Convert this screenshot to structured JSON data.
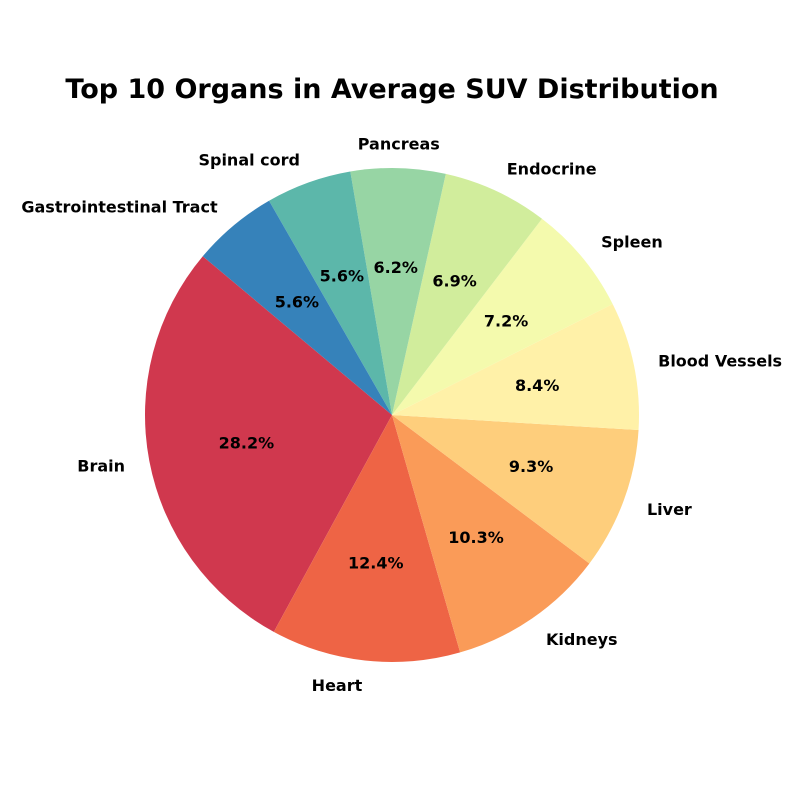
{
  "chart_data": {
    "type": "pie",
    "title": "Top 10 Organs in Average SUV Distribution",
    "start_angle_deg": 140,
    "direction": "counterclockwise",
    "slices": [
      {
        "label": "Brain",
        "value": 28.2,
        "pct_label": "28.2%",
        "color": "#d0384e"
      },
      {
        "label": "Heart",
        "value": 12.4,
        "pct_label": "12.4%",
        "color": "#ee6445"
      },
      {
        "label": "Kidneys",
        "value": 10.3,
        "pct_label": "10.3%",
        "color": "#fa9b58"
      },
      {
        "label": "Liver",
        "value": 9.3,
        "pct_label": "9.3%",
        "color": "#fece7c"
      },
      {
        "label": "Blood Vessels",
        "value": 8.4,
        "pct_label": "8.4%",
        "color": "#fff1a8"
      },
      {
        "label": "Spleen",
        "value": 7.2,
        "pct_label": "7.2%",
        "color": "#f4faad"
      },
      {
        "label": "Endocrine",
        "value": 6.9,
        "pct_label": "6.9%",
        "color": "#d1ed9c"
      },
      {
        "label": "Pancreas",
        "value": 6.2,
        "pct_label": "6.2%",
        "color": "#97d5a4"
      },
      {
        "label": "Spinal cord",
        "value": 5.6,
        "pct_label": "5.6%",
        "color": "#5cb7aa"
      },
      {
        "label": "Gastrointestinal Tract",
        "value": 5.6,
        "pct_label": "5.6%",
        "color": "#3682ba"
      }
    ]
  }
}
